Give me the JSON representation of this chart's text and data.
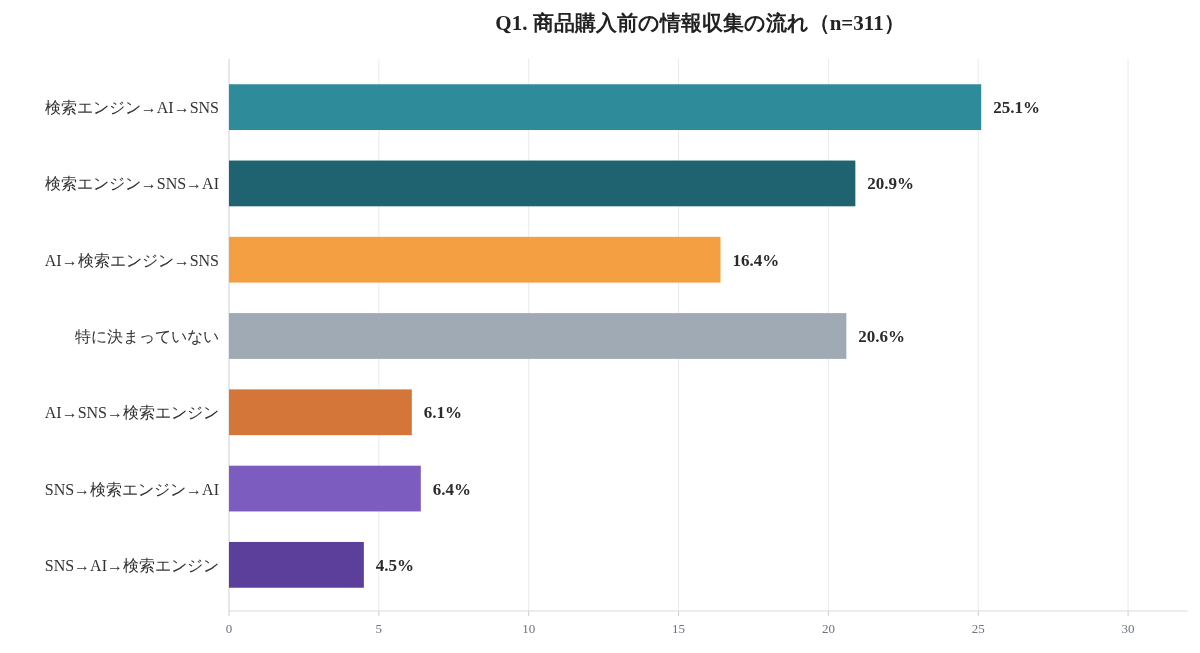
{
  "chart_data": {
    "type": "bar",
    "orientation": "horizontal",
    "title": "Q1. 商品購入前の情報収集の流れ（n=311）",
    "categories": [
      "検索エンジン→AI→SNS",
      "検索エンジン→SNS→AI",
      "AI→検索エンジン→SNS",
      "特に決まっていない",
      "AI→SNS→検索エンジン",
      "SNS→検索エンジン→AI",
      "SNS→AI→検索エンジン"
    ],
    "values": [
      25.1,
      20.9,
      16.4,
      20.6,
      6.1,
      6.4,
      4.5
    ],
    "colors": [
      "#2e8b99",
      "#1f6370",
      "#f4a042",
      "#a0aab4",
      "#d4753a",
      "#7c5cbf",
      "#5b3f9a"
    ],
    "value_labels": [
      "25.1%",
      "20.9%",
      "16.4%",
      "20.6%",
      "6.1%",
      "6.4%",
      "4.5%"
    ],
    "xlim": [
      0,
      32
    ],
    "xticks": [
      0,
      5,
      10,
      15,
      20,
      25,
      30
    ],
    "grid": "x"
  }
}
